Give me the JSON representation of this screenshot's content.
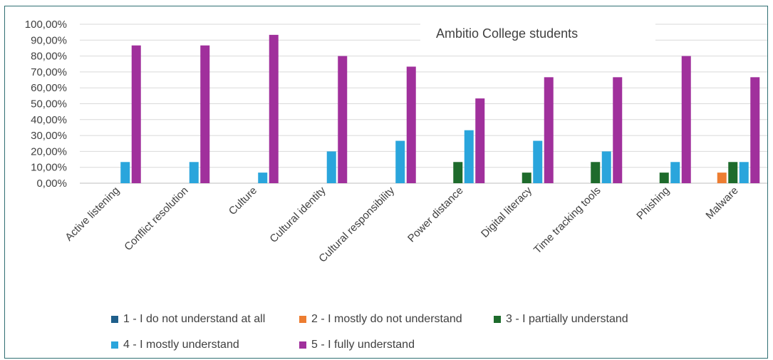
{
  "chart_data": {
    "type": "bar",
    "title": "Ambitio College students",
    "xlabel": "",
    "ylabel": "",
    "ylim": [
      0,
      100
    ],
    "y_ticks": [
      "0,00%",
      "10,00%",
      "20,00%",
      "30,00%",
      "40,00%",
      "50,00%",
      "60,00%",
      "70,00%",
      "80,00%",
      "90,00%",
      "100,00%"
    ],
    "grid": true,
    "legend_position": "bottom",
    "categories": [
      "Active listening",
      "Conflict resolution",
      "Culture",
      "Cultural identity",
      "Cultural responsibility",
      "Power distance",
      "Digital literacy",
      "Time tracking tools",
      "Phishing",
      "Malware"
    ],
    "series": [
      {
        "name": "1 - I do not understand at all",
        "color": "#1f5f8b",
        "values": [
          0,
          0,
          0,
          0,
          0,
          0,
          0,
          0,
          0,
          0
        ]
      },
      {
        "name": "2 - I mostly do not understand",
        "color": "#ed7d31",
        "values": [
          0,
          0,
          0,
          0,
          0,
          0,
          0,
          0,
          0,
          6.67
        ]
      },
      {
        "name": "3 - I partially understand",
        "color": "#1e6b2c",
        "values": [
          0,
          0,
          0,
          0,
          0,
          13.33,
          6.67,
          13.33,
          6.67,
          13.33
        ]
      },
      {
        "name": "4 - I mostly understand",
        "color": "#2aa5dc",
        "values": [
          13.33,
          13.33,
          6.67,
          20,
          26.67,
          33.33,
          26.67,
          20,
          13.33,
          13.33
        ]
      },
      {
        "name": "5 - I fully understand",
        "color": "#a0309c",
        "values": [
          86.67,
          86.67,
          93.33,
          80,
          73.33,
          53.33,
          66.67,
          66.67,
          80,
          66.67
        ]
      }
    ]
  }
}
